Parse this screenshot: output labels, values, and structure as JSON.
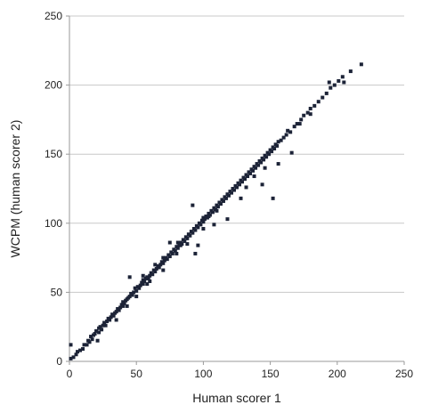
{
  "chart_data": {
    "type": "scatter",
    "title": "",
    "xlabel": "Human scorer 1",
    "ylabel": "WCPM (human scorer 2)",
    "xlim": [
      0,
      250
    ],
    "ylim": [
      0,
      250
    ],
    "xticks": [
      "0",
      "50",
      "100",
      "150",
      "200",
      "250"
    ],
    "yticks": [
      "0",
      "50",
      "100",
      "150",
      "200",
      "250"
    ],
    "grid": "horizontal",
    "legend": "none",
    "marker_color": "#1c2337",
    "series": [
      {
        "points": [
          [
            1,
            2
          ],
          [
            1,
            12
          ],
          [
            3,
            3
          ],
          [
            5,
            5
          ],
          [
            6,
            7
          ],
          [
            8,
            8
          ],
          [
            10,
            9
          ],
          [
            11,
            12
          ],
          [
            13,
            12
          ],
          [
            14,
            15
          ],
          [
            15,
            14
          ],
          [
            16,
            18
          ],
          [
            17,
            16
          ],
          [
            18,
            19
          ],
          [
            19,
            20
          ],
          [
            20,
            22
          ],
          [
            21,
            15
          ],
          [
            22,
            21
          ],
          [
            22,
            24
          ],
          [
            23,
            25
          ],
          [
            24,
            23
          ],
          [
            25,
            26
          ],
          [
            26,
            28
          ],
          [
            27,
            26
          ],
          [
            28,
            29
          ],
          [
            29,
            31
          ],
          [
            30,
            30
          ],
          [
            31,
            32
          ],
          [
            32,
            34
          ],
          [
            33,
            33
          ],
          [
            34,
            35
          ],
          [
            35,
            36
          ],
          [
            35,
            30
          ],
          [
            36,
            38
          ],
          [
            37,
            37
          ],
          [
            38,
            39
          ],
          [
            39,
            41
          ],
          [
            40,
            40
          ],
          [
            40,
            43
          ],
          [
            41,
            42
          ],
          [
            42,
            44
          ],
          [
            43,
            45
          ],
          [
            43,
            40
          ],
          [
            44,
            46
          ],
          [
            45,
            47
          ],
          [
            45,
            61
          ],
          [
            46,
            49
          ],
          [
            47,
            48
          ],
          [
            48,
            50
          ],
          [
            49,
            53
          ],
          [
            50,
            51
          ],
          [
            50,
            47
          ],
          [
            51,
            54
          ],
          [
            52,
            53
          ],
          [
            53,
            55
          ],
          [
            54,
            57
          ],
          [
            55,
            56
          ],
          [
            55,
            59
          ],
          [
            56,
            58
          ],
          [
            57,
            60
          ],
          [
            58,
            61
          ],
          [
            59,
            60
          ],
          [
            60,
            62
          ],
          [
            61,
            64
          ],
          [
            62,
            63
          ],
          [
            63,
            66
          ],
          [
            64,
            65
          ],
          [
            65,
            67
          ],
          [
            66,
            69
          ],
          [
            67,
            68
          ],
          [
            68,
            70
          ],
          [
            69,
            72
          ],
          [
            70,
            71
          ],
          [
            70,
            75
          ],
          [
            71,
            73
          ],
          [
            72,
            75
          ],
          [
            73,
            74
          ],
          [
            74,
            77
          ],
          [
            75,
            76
          ],
          [
            76,
            79
          ],
          [
            77,
            78
          ],
          [
            78,
            81
          ],
          [
            79,
            80
          ],
          [
            80,
            83
          ],
          [
            81,
            82
          ],
          [
            81,
            86
          ],
          [
            82,
            84
          ],
          [
            83,
            86
          ],
          [
            84,
            85
          ],
          [
            85,
            88
          ],
          [
            86,
            87
          ],
          [
            87,
            90
          ],
          [
            88,
            89
          ],
          [
            88,
            85
          ],
          [
            89,
            92
          ],
          [
            90,
            91
          ],
          [
            91,
            94
          ],
          [
            92,
            93
          ],
          [
            93,
            96
          ],
          [
            94,
            95
          ],
          [
            95,
            98
          ],
          [
            96,
            97
          ],
          [
            97,
            100
          ],
          [
            98,
            99
          ],
          [
            99,
            102
          ],
          [
            100,
            101
          ],
          [
            100,
            104
          ],
          [
            101,
            103
          ],
          [
            102,
            105
          ],
          [
            103,
            104
          ],
          [
            104,
            107
          ],
          [
            105,
            106
          ],
          [
            106,
            109
          ],
          [
            107,
            108
          ],
          [
            108,
            111
          ],
          [
            109,
            110
          ],
          [
            110,
            113
          ],
          [
            111,
            112
          ],
          [
            112,
            115
          ],
          [
            113,
            114
          ],
          [
            114,
            117
          ],
          [
            115,
            116
          ],
          [
            116,
            119
          ],
          [
            117,
            118
          ],
          [
            118,
            121
          ],
          [
            119,
            120
          ],
          [
            120,
            123
          ],
          [
            121,
            122
          ],
          [
            122,
            125
          ],
          [
            123,
            124
          ],
          [
            124,
            127
          ],
          [
            125,
            126
          ],
          [
            126,
            129
          ],
          [
            127,
            128
          ],
          [
            128,
            131
          ],
          [
            129,
            130
          ],
          [
            130,
            133
          ],
          [
            131,
            132
          ],
          [
            132,
            135
          ],
          [
            133,
            134
          ],
          [
            134,
            137
          ],
          [
            135,
            136
          ],
          [
            136,
            139
          ],
          [
            137,
            138
          ],
          [
            138,
            141
          ],
          [
            139,
            140
          ],
          [
            140,
            143
          ],
          [
            141,
            142
          ],
          [
            142,
            145
          ],
          [
            143,
            144
          ],
          [
            144,
            147
          ],
          [
            145,
            146
          ],
          [
            146,
            149
          ],
          [
            147,
            148
          ],
          [
            148,
            151
          ],
          [
            149,
            150
          ],
          [
            150,
            153
          ],
          [
            151,
            152
          ],
          [
            152,
            155
          ],
          [
            153,
            154
          ],
          [
            154,
            157
          ],
          [
            155,
            156
          ],
          [
            156,
            159
          ],
          [
            158,
            160
          ],
          [
            160,
            162
          ],
          [
            162,
            164
          ],
          [
            165,
            166
          ],
          [
            168,
            170
          ],
          [
            170,
            172
          ],
          [
            173,
            175
          ],
          [
            175,
            178
          ],
          [
            178,
            180
          ],
          [
            180,
            183
          ],
          [
            183,
            185
          ],
          [
            186,
            188
          ],
          [
            189,
            191
          ],
          [
            192,
            194
          ],
          [
            195,
            198
          ],
          [
            198,
            200
          ],
          [
            201,
            203
          ],
          [
            204,
            206
          ],
          [
            218,
            215
          ],
          [
            92,
            113
          ],
          [
            94,
            78
          ],
          [
            96,
            84
          ],
          [
            104,
            105
          ],
          [
            108,
            99
          ],
          [
            118,
            103
          ],
          [
            128,
            118
          ],
          [
            144,
            128
          ],
          [
            152,
            118
          ],
          [
            156,
            143
          ],
          [
            166,
            151
          ],
          [
            172,
            172
          ],
          [
            180,
            179
          ],
          [
            194,
            202
          ],
          [
            64,
            70
          ],
          [
            58,
            56
          ],
          [
            75,
            86
          ],
          [
            83,
            84
          ],
          [
            138,
            134
          ],
          [
            163,
            167
          ],
          [
            210,
            210
          ],
          [
            205,
            202
          ],
          [
            110,
            109
          ],
          [
            100,
            96
          ],
          [
            146,
            140
          ],
          [
            132,
            126
          ],
          [
            55,
            62
          ],
          [
            60,
            58
          ],
          [
            70,
            66
          ],
          [
            80,
            78
          ]
        ]
      }
    ]
  }
}
